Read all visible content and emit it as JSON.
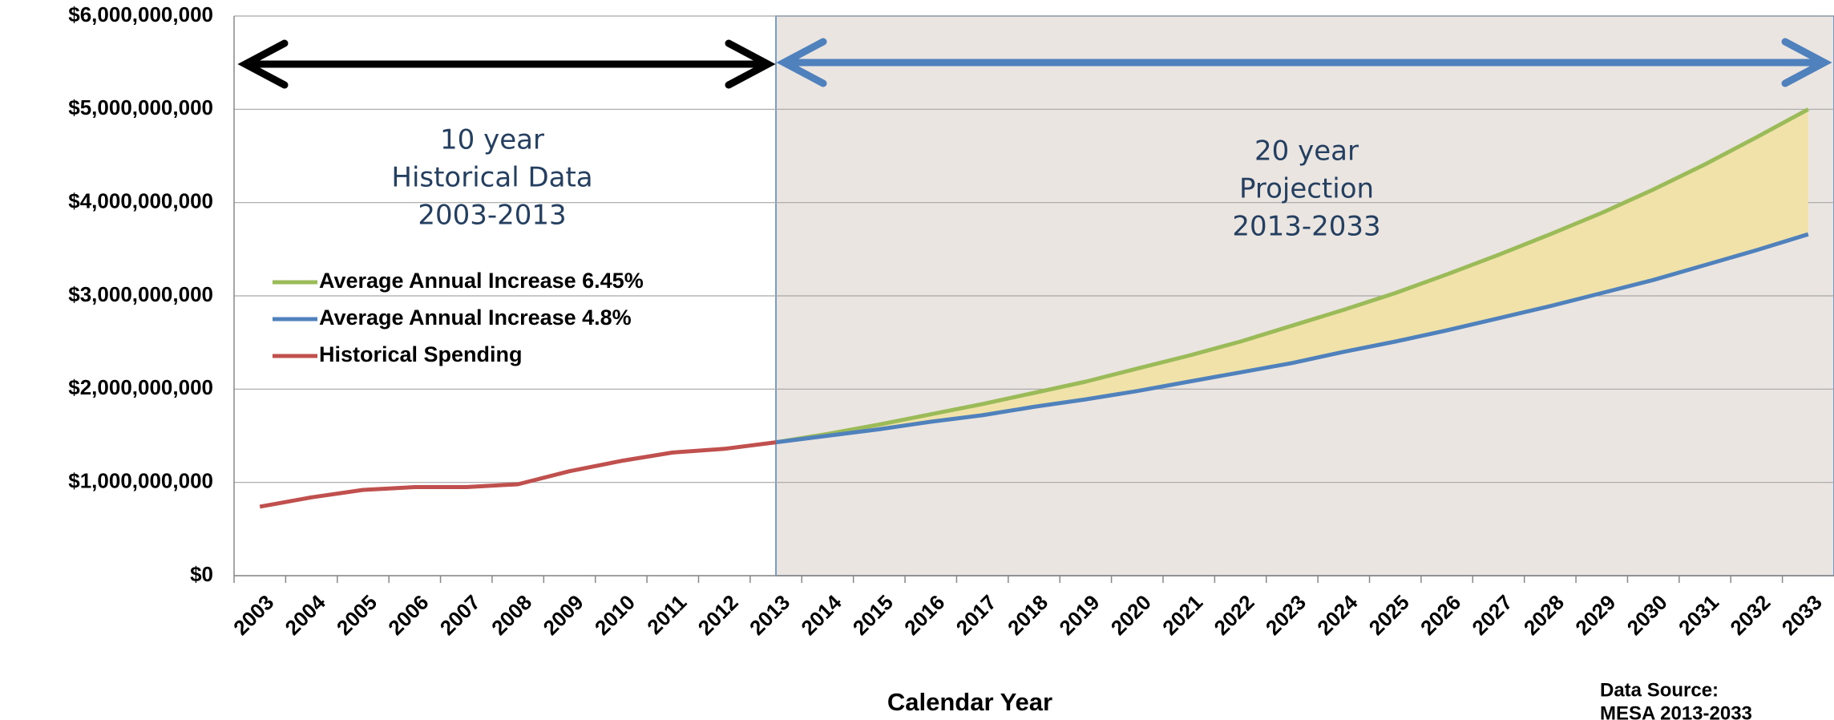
{
  "chart_data": {
    "type": "line",
    "categories": [
      "2003",
      "2004",
      "2005",
      "2006",
      "2007",
      "2008",
      "2009",
      "2010",
      "2011",
      "2012",
      "2013",
      "2014",
      "2015",
      "2016",
      "2017",
      "2018",
      "2019",
      "2020",
      "2021",
      "2022",
      "2023",
      "2024",
      "2025",
      "2026",
      "2027",
      "2028",
      "2029",
      "2030",
      "2031",
      "2032",
      "2033"
    ],
    "series": [
      {
        "name": "Average Annual Increase 6.45%",
        "color": "#9bbb59",
        "values": [
          null,
          null,
          null,
          null,
          null,
          null,
          null,
          null,
          null,
          null,
          1430000000,
          1520000000,
          1620000000,
          1730000000,
          1840000000,
          1960000000,
          2080000000,
          2220000000,
          2360000000,
          2510000000,
          2680000000,
          2850000000,
          3030000000,
          3230000000,
          3440000000,
          3660000000,
          3890000000,
          4140000000,
          4410000000,
          4700000000,
          5000000000
        ]
      },
      {
        "name": "Average Annual Increase 4.8%",
        "color": "#4f81bd",
        "values": [
          null,
          null,
          null,
          null,
          null,
          null,
          null,
          null,
          null,
          null,
          1430000000,
          1500000000,
          1570000000,
          1650000000,
          1720000000,
          1810000000,
          1890000000,
          1980000000,
          2080000000,
          2180000000,
          2280000000,
          2400000000,
          2510000000,
          2630000000,
          2760000000,
          2890000000,
          3030000000,
          3170000000,
          3330000000,
          3490000000,
          3660000000
        ]
      },
      {
        "name": "Historical Spending",
        "color": "#c0504d",
        "values": [
          740000000,
          840000000,
          920000000,
          950000000,
          950000000,
          980000000,
          1120000000,
          1230000000,
          1320000000,
          1360000000,
          1430000000,
          null,
          null,
          null,
          null,
          null,
          null,
          null,
          null,
          null,
          null,
          null,
          null,
          null,
          null,
          null,
          null,
          null,
          null,
          null,
          null
        ]
      }
    ],
    "ylim": [
      0,
      6000000000
    ],
    "yticks": [
      {
        "value": 0,
        "label": "$0"
      },
      {
        "value": 1000000000,
        "label": "$1,000,000,000"
      },
      {
        "value": 2000000000,
        "label": "$2,000,000,000"
      },
      {
        "value": 3000000000,
        "label": "$3,000,000,000"
      },
      {
        "value": 4000000000,
        "label": "$4,000,000,000"
      },
      {
        "value": 5000000000,
        "label": "$5,000,000,000"
      },
      {
        "value": 6000000000,
        "label": "$6,000,000,000"
      }
    ],
    "grid": true,
    "x_label": "Calendar Year",
    "annotations": {
      "historical": [
        "10 year",
        "Historical Data",
        "2003-2013"
      ],
      "projection": [
        "20 year",
        "Projection",
        "2013-2033"
      ],
      "source": [
        "Data Source:",
        "MESA 2013-2033"
      ]
    },
    "fill_between_color": "#f0e2a8",
    "projection_background": "#ebe5e1"
  }
}
